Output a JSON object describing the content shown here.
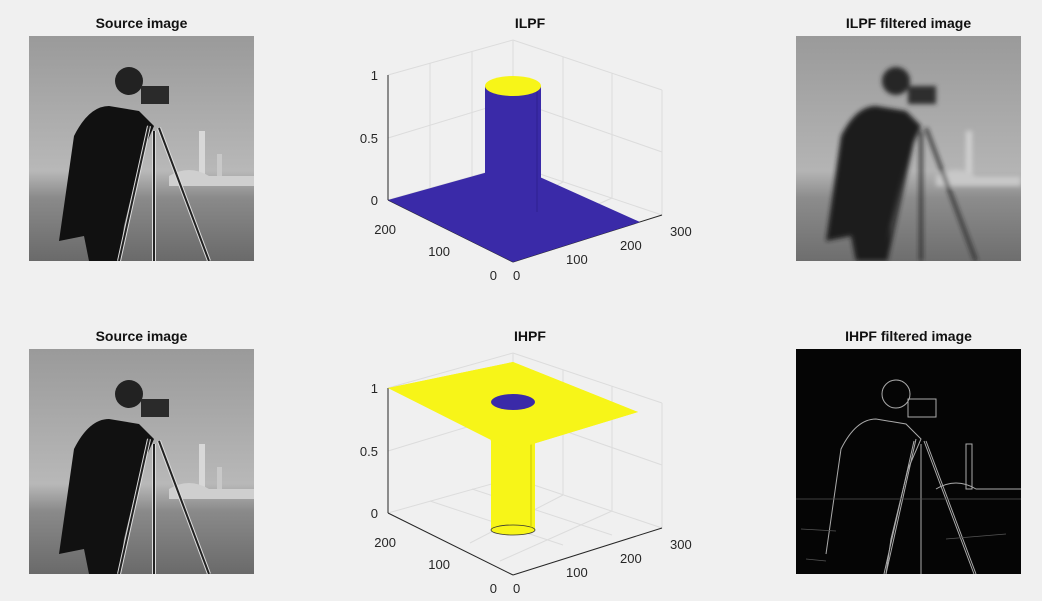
{
  "figure": {
    "row1": {
      "source_title": "Source image",
      "filter_title": "ILPF",
      "result_title": "ILPF filtered image"
    },
    "row2": {
      "source_title": "Source image",
      "filter_title": "IHPF",
      "result_title": "IHPF filtered image"
    },
    "axes": {
      "z_ticks": [
        "0",
        "0.5",
        "1"
      ],
      "left_ticks": [
        "0",
        "100",
        "200"
      ],
      "right_ticks": [
        "100",
        "200",
        "300"
      ],
      "extra_zero": "0"
    },
    "colors": {
      "surface_blue": "#3a2aa8",
      "surface_yellow": "#f7f518",
      "background": "#f0f0f0"
    }
  }
}
